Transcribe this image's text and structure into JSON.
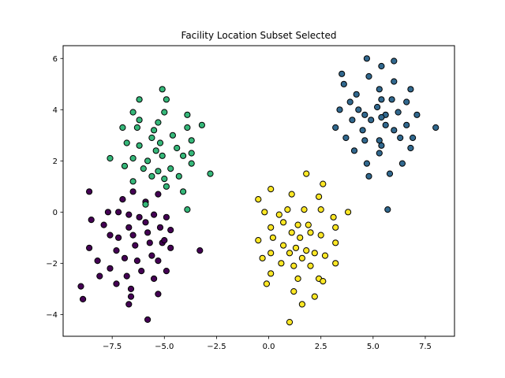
{
  "chart_data": {
    "type": "scatter",
    "title": "Facility Location Subset Selected",
    "xlabel": "",
    "ylabel": "",
    "xlim": [
      -9.85,
      8.9
    ],
    "ylim": [
      -4.85,
      6.5
    ],
    "xticks": [
      -7.5,
      -5.0,
      -2.5,
      0.0,
      2.5,
      5.0,
      7.5
    ],
    "xtick_labels": [
      "−7.5",
      "−5.0",
      "−2.5",
      "0.0",
      "2.5",
      "5.0",
      "7.5"
    ],
    "yticks": [
      -4,
      -2,
      0,
      2,
      4,
      6
    ],
    "ytick_labels": [
      "−4",
      "−2",
      "0",
      "2",
      "4",
      "6"
    ],
    "grid": false,
    "series": [
      {
        "color": "#440154",
        "points": [
          [
            -8.6,
            0.8
          ],
          [
            -7.0,
            0.5
          ],
          [
            -6.5,
            0.8
          ],
          [
            -5.9,
            0.4
          ],
          [
            -5.3,
            0.7
          ],
          [
            -8.5,
            -0.3
          ],
          [
            -7.7,
            0.0
          ],
          [
            -7.2,
            0.0
          ],
          [
            -6.7,
            -0.1
          ],
          [
            -6.2,
            -0.2
          ],
          [
            -5.5,
            -0.1
          ],
          [
            -4.9,
            -0.2
          ],
          [
            -7.9,
            -0.5
          ],
          [
            -6.7,
            -0.6
          ],
          [
            -5.9,
            -0.4
          ],
          [
            -5.2,
            -0.6
          ],
          [
            -4.7,
            -0.7
          ],
          [
            -7.6,
            -0.9
          ],
          [
            -7.2,
            -1.0
          ],
          [
            -6.5,
            -0.9
          ],
          [
            -5.8,
            -0.8
          ],
          [
            -5.1,
            -1.2
          ],
          [
            -8.6,
            -1.4
          ],
          [
            -7.3,
            -1.5
          ],
          [
            -6.4,
            -1.3
          ],
          [
            -5.7,
            -1.2
          ],
          [
            -5.0,
            -1.1
          ],
          [
            -4.7,
            -1.4
          ],
          [
            -8.2,
            -1.9
          ],
          [
            -7.6,
            -2.2
          ],
          [
            -6.9,
            -1.8
          ],
          [
            -6.3,
            -1.9
          ],
          [
            -5.6,
            -1.7
          ],
          [
            -5.3,
            -1.9
          ],
          [
            -8.1,
            -2.5
          ],
          [
            -7.3,
            -2.8
          ],
          [
            -6.8,
            -2.5
          ],
          [
            -6.1,
            -2.3
          ],
          [
            -5.5,
            -2.6
          ],
          [
            -4.9,
            -2.3
          ],
          [
            -9.0,
            -2.9
          ],
          [
            -8.9,
            -3.4
          ],
          [
            -6.6,
            -3.0
          ],
          [
            -6.6,
            -3.3
          ],
          [
            -5.3,
            -3.2
          ],
          [
            -6.7,
            -3.6
          ],
          [
            -5.8,
            -4.2
          ],
          [
            -3.3,
            -1.5
          ]
        ]
      },
      {
        "color": "#31688e",
        "points": [
          [
            4.7,
            6.0
          ],
          [
            5.4,
            5.7
          ],
          [
            6.0,
            5.9
          ],
          [
            3.5,
            5.4
          ],
          [
            3.6,
            5.0
          ],
          [
            4.8,
            5.3
          ],
          [
            6.0,
            5.1
          ],
          [
            5.3,
            4.8
          ],
          [
            6.8,
            4.8
          ],
          [
            4.2,
            4.6
          ],
          [
            5.4,
            4.4
          ],
          [
            5.9,
            4.4
          ],
          [
            3.9,
            4.3
          ],
          [
            4.3,
            4.0
          ],
          [
            5.2,
            4.1
          ],
          [
            6.6,
            4.3
          ],
          [
            3.4,
            4.0
          ],
          [
            4.6,
            3.8
          ],
          [
            5.6,
            3.8
          ],
          [
            6.2,
            3.9
          ],
          [
            7.1,
            3.8
          ],
          [
            4.0,
            3.6
          ],
          [
            4.9,
            3.6
          ],
          [
            5.4,
            3.7
          ],
          [
            6.6,
            3.4
          ],
          [
            3.2,
            3.3
          ],
          [
            4.5,
            3.2
          ],
          [
            5.6,
            3.4
          ],
          [
            6.0,
            3.2
          ],
          [
            8.0,
            3.3
          ],
          [
            3.7,
            2.9
          ],
          [
            4.6,
            2.8
          ],
          [
            5.3,
            2.8
          ],
          [
            6.3,
            2.9
          ],
          [
            6.9,
            2.9
          ],
          [
            4.1,
            2.4
          ],
          [
            5.4,
            2.6
          ],
          [
            6.8,
            2.5
          ],
          [
            5.3,
            2.3
          ],
          [
            4.7,
            1.9
          ],
          [
            6.4,
            1.9
          ],
          [
            4.8,
            1.4
          ],
          [
            5.8,
            1.5
          ],
          [
            5.7,
            0.1
          ]
        ]
      },
      {
        "color": "#35b779",
        "points": [
          [
            -5.1,
            4.8
          ],
          [
            -6.2,
            4.4
          ],
          [
            -4.9,
            4.4
          ],
          [
            -6.5,
            3.9
          ],
          [
            -5.0,
            3.9
          ],
          [
            -3.9,
            3.8
          ],
          [
            -6.2,
            3.6
          ],
          [
            -5.3,
            3.5
          ],
          [
            -7.0,
            3.3
          ],
          [
            -6.3,
            3.3
          ],
          [
            -5.5,
            3.2
          ],
          [
            -3.9,
            3.3
          ],
          [
            -3.2,
            3.4
          ],
          [
            -5.6,
            2.9
          ],
          [
            -4.6,
            3.0
          ],
          [
            -6.8,
            2.7
          ],
          [
            -6.2,
            2.6
          ],
          [
            -5.2,
            2.7
          ],
          [
            -3.7,
            2.8
          ],
          [
            -4.4,
            2.5
          ],
          [
            -5.4,
            2.4
          ],
          [
            -7.6,
            2.1
          ],
          [
            -6.5,
            2.1
          ],
          [
            -5.8,
            2.0
          ],
          [
            -5.1,
            2.2
          ],
          [
            -4.1,
            2.2
          ],
          [
            -3.7,
            2.3
          ],
          [
            -6.9,
            1.8
          ],
          [
            -6.0,
            1.7
          ],
          [
            -5.3,
            1.6
          ],
          [
            -4.7,
            1.7
          ],
          [
            -3.7,
            1.9
          ],
          [
            -2.8,
            1.5
          ],
          [
            -5.6,
            1.4
          ],
          [
            -5.0,
            1.3
          ],
          [
            -4.3,
            1.4
          ],
          [
            -6.5,
            1.2
          ],
          [
            -4.9,
            1.0
          ],
          [
            -4.1,
            0.8
          ],
          [
            -3.9,
            0.1
          ],
          [
            -5.9,
            0.3
          ]
        ]
      },
      {
        "color": "#fde725",
        "points": [
          [
            1.8,
            1.5
          ],
          [
            2.6,
            1.1
          ],
          [
            0.1,
            0.9
          ],
          [
            1.1,
            0.7
          ],
          [
            2.4,
            0.6
          ],
          [
            -0.5,
            0.5
          ],
          [
            -0.2,
            0.0
          ],
          [
            0.5,
            -0.1
          ],
          [
            0.9,
            0.1
          ],
          [
            1.7,
            0.1
          ],
          [
            2.5,
            0.1
          ],
          [
            3.1,
            -0.2
          ],
          [
            3.8,
            0.0
          ],
          [
            0.7,
            -0.4
          ],
          [
            1.4,
            -0.5
          ],
          [
            1.9,
            -0.5
          ],
          [
            0.1,
            -0.6
          ],
          [
            3.2,
            -0.6
          ],
          [
            -0.5,
            -1.1
          ],
          [
            0.2,
            -1.0
          ],
          [
            1.1,
            -0.8
          ],
          [
            1.5,
            -1.0
          ],
          [
            2.0,
            -0.8
          ],
          [
            2.5,
            -0.9
          ],
          [
            0.7,
            -1.3
          ],
          [
            1.3,
            -1.4
          ],
          [
            1.8,
            -1.5
          ],
          [
            3.2,
            -1.2
          ],
          [
            0.1,
            -1.6
          ],
          [
            1.0,
            -1.6
          ],
          [
            1.6,
            -1.8
          ],
          [
            2.2,
            -1.6
          ],
          [
            2.7,
            -1.7
          ],
          [
            -0.3,
            -1.8
          ],
          [
            0.6,
            -2.0
          ],
          [
            1.2,
            -2.1
          ],
          [
            2.0,
            -2.1
          ],
          [
            3.2,
            -2.0
          ],
          [
            0.1,
            -2.4
          ],
          [
            2.4,
            -2.6
          ],
          [
            -0.1,
            -2.8
          ],
          [
            1.4,
            -2.6
          ],
          [
            2.6,
            -2.7
          ],
          [
            1.2,
            -3.1
          ],
          [
            2.2,
            -3.3
          ],
          [
            1.6,
            -3.6
          ],
          [
            1.0,
            -4.3
          ]
        ]
      }
    ]
  }
}
